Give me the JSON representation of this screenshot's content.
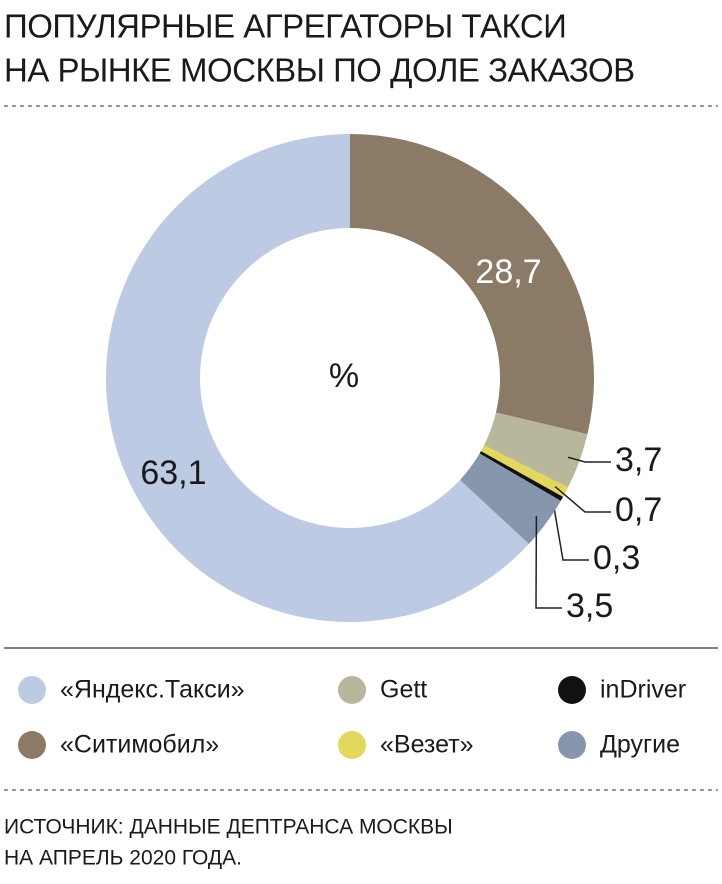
{
  "chart_data": {
    "type": "donut",
    "title": [
      "ПОПУЛЯРНЫЕ АГРЕГАТОРЫ ТАКСИ",
      "НА РЫНКЕ МОСКВЫ ПО ДОЛЕ ЗАКАЗОВ"
    ],
    "center_label": "%",
    "categories": [
      "«Яндекс.Такси»",
      "«Ситимобил»",
      "Gett",
      "«Везет»",
      "inDriver",
      "Другие"
    ],
    "values": [
      63.1,
      28.7,
      3.7,
      0.7,
      0.3,
      3.5
    ],
    "value_labels": [
      "63,1",
      "28,7",
      "3,7",
      "0,7",
      "0,3",
      "3,5"
    ],
    "colors": [
      "#bccbe3",
      "#8a7a66",
      "#b9b79b",
      "#e2d95a",
      "#111111",
      "#8596ad"
    ],
    "source": [
      "ИСТОЧНИК: ДАННЫЕ ДЕПТРАНСА МОСКВЫ",
      "НА АПРЕЛЬ 2020 ГОДА."
    ]
  }
}
